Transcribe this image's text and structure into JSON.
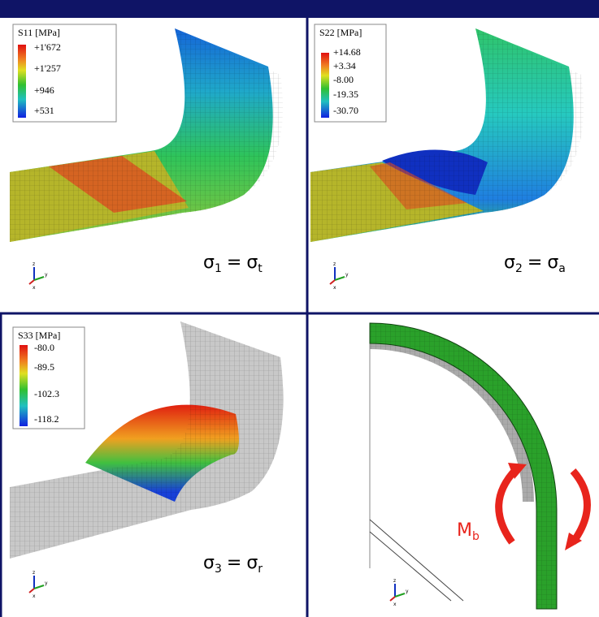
{
  "panels": [
    {
      "legend_title": "S11 [MPa]",
      "legend_values": [
        "+1'672",
        "+1'257",
        "+946",
        "+531"
      ],
      "label": {
        "lhs": "σ",
        "lhs_sub": "1",
        "op": "=",
        "rhs": "σ",
        "rhs_sub": "t"
      }
    },
    {
      "legend_title": "S22 [MPa]",
      "legend_values": [
        "+14.68",
        "+3.34",
        "-8.00",
        "-19.35",
        "-30.70"
      ],
      "label": {
        "lhs": "σ",
        "lhs_sub": "2",
        "op": "=",
        "rhs": "σ",
        "rhs_sub": "a"
      }
    },
    {
      "legend_title": "S33 [MPa]",
      "legend_values": [
        "-80.0",
        "-89.5",
        "-102.3",
        "-118.2"
      ],
      "label": {
        "lhs": "σ",
        "lhs_sub": "3",
        "op": "=",
        "rhs": "σ",
        "rhs_sub": "r"
      }
    }
  ],
  "moment": {
    "text": "M",
    "sub": "b"
  },
  "triad_labels": [
    "z",
    "y",
    "x"
  ]
}
